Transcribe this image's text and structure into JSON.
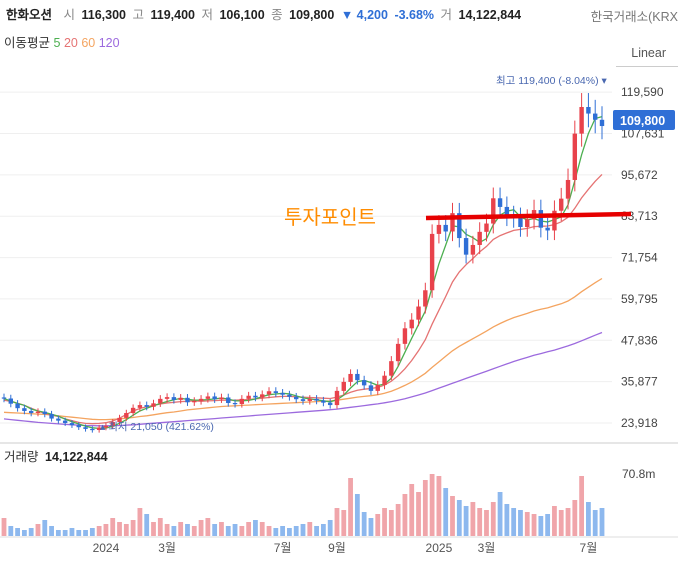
{
  "header": {
    "name": "한화오션",
    "open_label": "시",
    "open": "116,300",
    "high_label": "고",
    "high": "119,400",
    "low_label": "저",
    "low": "106,100",
    "close_label": "종",
    "close": "109,800",
    "change": "▼ 4,200",
    "change_pct": "-3.68%",
    "volume_label": "거",
    "volume": "14,122,844",
    "exchange": "한국거래소(KRX"
  },
  "moving_average": {
    "label": "이동평균",
    "periods": [
      {
        "text": "5",
        "color": "#4caf50"
      },
      {
        "text": "20",
        "color": "#e57373"
      },
      {
        "text": "60",
        "color": "#f4a460"
      },
      {
        "text": "120",
        "color": "#9c6ade"
      }
    ]
  },
  "scale_mode": "Linear",
  "annotations": {
    "investment_point": "투자포인트",
    "max_label": "최고 119,400 (-8.04%) ▾",
    "min_label": "▴ 최저 21,050 (421.62%)",
    "last_price": "109,800"
  },
  "volume_panel": {
    "label": "거래량",
    "value": "14,122,844",
    "max_tick": "70.8m"
  },
  "chart_data": {
    "type": "candlestick",
    "y_ticks": [
      "119,590",
      "107,631",
      "95,672",
      "83,713",
      "71,754",
      "59,795",
      "47,836",
      "35,877",
      "23,918"
    ],
    "ylim": [
      19000,
      126000
    ],
    "x_ticks": [
      "2024",
      "3월",
      "7월",
      "9월",
      "2025",
      "3월",
      "7월"
    ],
    "colors": {
      "up": "#e8424b",
      "down": "#2f6fd6",
      "ma5": "#4caf50",
      "ma20": "#e57373",
      "ma60": "#f4a460",
      "ma120": "#9c6ade",
      "vol_up": "#f0a5aa",
      "vol_down": "#8db8ee"
    },
    "weekly_close": [
      31000,
      29500,
      28200,
      27400,
      26800,
      27200,
      26500,
      25200,
      24600,
      23900,
      23300,
      22700,
      22200,
      21900,
      22600,
      23100,
      24200,
      25400,
      26800,
      28300,
      29100,
      28600,
      29600,
      30900,
      31400,
      30600,
      31200,
      29900,
      30300,
      30900,
      31600,
      30800,
      31300,
      29700,
      29400,
      30900,
      31800,
      31300,
      32200,
      33100,
      32600,
      32100,
      31500,
      30800,
      30300,
      30900,
      30400,
      29800,
      29100,
      33200,
      35800,
      38100,
      36300,
      34800,
      33200,
      34900,
      37600,
      41800,
      46800,
      51300,
      53800,
      57600,
      62300,
      78600,
      81200,
      79300,
      84600,
      77400,
      72600,
      75400,
      79200,
      81600,
      88900,
      86400,
      83800,
      83300,
      80600,
      82800,
      85500,
      80400,
      79600,
      85300,
      88800,
      94200,
      107600,
      115300,
      113400,
      111600,
      109800
    ],
    "ma_levels": {
      "ma20": [
        30500,
        30200,
        29600,
        29000,
        28200,
        27400,
        26700,
        26200,
        25800,
        25100,
        24600,
        24100,
        23800,
        23700,
        23800,
        24000,
        24500,
        25300,
        26400,
        27400,
        28100,
        28600,
        29000,
        29400,
        29700,
        29900,
        30100,
        30200,
        30300,
        30200,
        30300,
        30400,
        30500,
        30500,
        30500,
        30600,
        30700,
        30900,
        31100,
        31300,
        31500,
        31600,
        31600,
        31500,
        31400,
        31300,
        31200,
        31100,
        31000,
        31400,
        32000,
        32800,
        33400,
        33700,
        33900,
        34200,
        34900,
        36000,
        37600,
        39600,
        42000,
        44800,
        48000,
        52500,
        56500,
        60500,
        64700,
        67600,
        69700,
        71500,
        73400,
        75000,
        77000,
        78100,
        78900,
        79600,
        79900,
        80200,
        80700,
        80800,
        80900,
        81300,
        82100,
        83400,
        86000,
        89000,
        91500,
        93800,
        95800
      ],
      "ma60": [
        27000,
        26900,
        26800,
        26700,
        26600,
        26500,
        26400,
        26200,
        26000,
        25800,
        25600,
        25400,
        25200,
        25000,
        24900,
        24900,
        25000,
        25100,
        25300,
        25500,
        25800,
        26000,
        26300,
        26600,
        26900,
        27100,
        27400,
        27700,
        27900,
        28100,
        28300,
        28500,
        28700,
        28800,
        28900,
        29000,
        29100,
        29200,
        29300,
        29400,
        29500,
        29600,
        29700,
        29800,
        29900,
        30000,
        30100,
        30200,
        30300,
        30500,
        30800,
        31100,
        31400,
        31600,
        31800,
        32100,
        32500,
        33100,
        33900,
        34800,
        35800,
        37000,
        38300,
        40000,
        41600,
        43200,
        44800,
        46100,
        47200,
        48300,
        49400,
        50500,
        51700,
        52700,
        53600,
        54400,
        55000,
        55600,
        56300,
        56800,
        57200,
        57800,
        58400,
        59200,
        60400,
        61900,
        63200,
        64500,
        65700
      ],
      "ma120": [
        25100,
        24900,
        24700,
        24500,
        24300,
        24100,
        23950,
        23800,
        23650,
        23500,
        23400,
        23300,
        23200,
        23150,
        23100,
        23100,
        23150,
        23200,
        23300,
        23400,
        23550,
        23700,
        23850,
        24000,
        24150,
        24300,
        24450,
        24600,
        24750,
        24900,
        25050,
        25200,
        25350,
        25500,
        25650,
        25800,
        25950,
        26100,
        26250,
        26400,
        26550,
        26700,
        26850,
        27000,
        27150,
        27300,
        27450,
        27600,
        27750,
        27950,
        28200,
        28450,
        28700,
        28950,
        29200,
        29450,
        29750,
        30100,
        30500,
        30950,
        31450,
        32000,
        32600,
        33300,
        34000,
        34700,
        35400,
        36100,
        36800,
        37500,
        38200,
        38900,
        39600,
        40300,
        41000,
        41700,
        42300,
        42900,
        43500,
        44000,
        44500,
        45000,
        45600,
        46200,
        46900,
        47700,
        48500,
        49300,
        50100
      ]
    },
    "weekly_volume": [
      9,
      5,
      4,
      3,
      4,
      6,
      8,
      5,
      3,
      3,
      4,
      3,
      3,
      4,
      5,
      6,
      9,
      7,
      6,
      8,
      14,
      11,
      7,
      9,
      6,
      5,
      7,
      6,
      5,
      8,
      9,
      6,
      7,
      5,
      6,
      5,
      7,
      8,
      7,
      5,
      4,
      5,
      4,
      5,
      6,
      7,
      5,
      6,
      8,
      14,
      13,
      29,
      21,
      12,
      9,
      11,
      14,
      13,
      16,
      21,
      26,
      22,
      28,
      31,
      30,
      24,
      20,
      18,
      15,
      17,
      14,
      13,
      17,
      22,
      16,
      14,
      13,
      12,
      11,
      10,
      11,
      15,
      13,
      14,
      18,
      30,
      17,
      13,
      14
    ]
  }
}
